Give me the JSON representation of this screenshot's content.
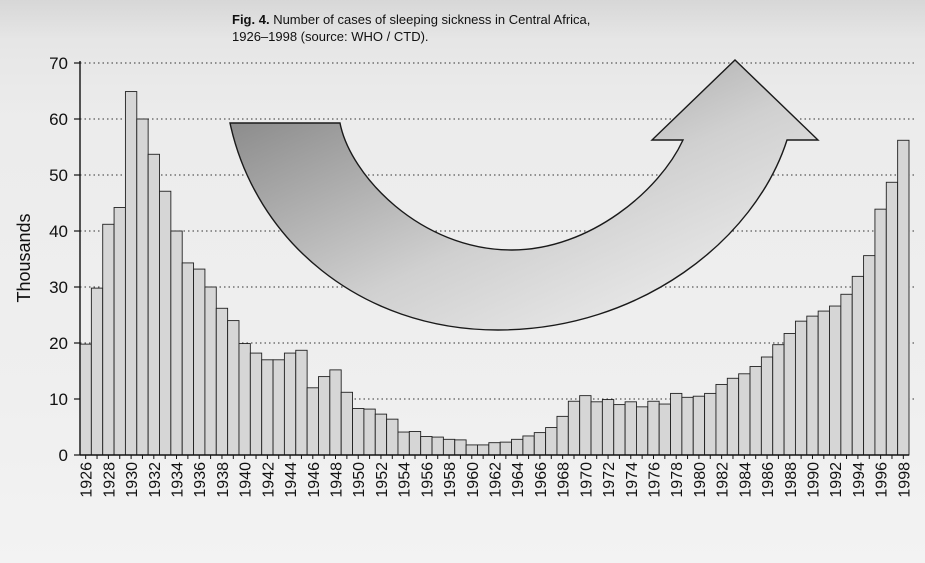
{
  "caption": {
    "label": "Fig. 4.",
    "text": "Number of cases of sleeping sickness in Central Africa, 1926–1998 (source: WHO / CTD)."
  },
  "colors": {
    "bar_fill": "#d6d6d6",
    "bar_stroke": "#222222",
    "arrow_dark": "#7a7a7a",
    "arrow_light": "#f6f6f6",
    "axis": "#111111"
  },
  "chart_data": {
    "type": "bar",
    "ylabel": "Thousands",
    "ylim": [
      0,
      70
    ],
    "yticks": [
      0,
      10,
      20,
      30,
      40,
      50,
      60,
      70
    ],
    "grid": "dotted horizontal",
    "x_tick_step": 2,
    "x": [
      1926,
      1927,
      1928,
      1929,
      1930,
      1931,
      1932,
      1933,
      1934,
      1935,
      1936,
      1937,
      1938,
      1939,
      1940,
      1941,
      1942,
      1943,
      1944,
      1945,
      1946,
      1947,
      1948,
      1949,
      1950,
      1951,
      1952,
      1953,
      1954,
      1955,
      1956,
      1957,
      1958,
      1959,
      1960,
      1961,
      1962,
      1963,
      1964,
      1965,
      1966,
      1967,
      1968,
      1969,
      1970,
      1971,
      1972,
      1973,
      1974,
      1975,
      1976,
      1977,
      1978,
      1979,
      1980,
      1981,
      1982,
      1983,
      1984,
      1985,
      1986,
      1987,
      1988,
      1989,
      1990,
      1991,
      1992,
      1993,
      1994,
      1995,
      1996,
      1997,
      1998
    ],
    "values": [
      19.8,
      29.8,
      41.2,
      44.2,
      64.9,
      60.0,
      53.7,
      47.1,
      40.0,
      34.3,
      33.2,
      30.0,
      26.2,
      24.0,
      19.9,
      18.2,
      17.0,
      17.0,
      18.2,
      18.7,
      12.0,
      14.0,
      15.2,
      11.2,
      8.3,
      8.2,
      7.3,
      6.4,
      4.1,
      4.2,
      3.3,
      3.2,
      2.8,
      2.7,
      1.8,
      1.8,
      2.2,
      2.3,
      2.8,
      3.4,
      4.0,
      4.9,
      6.9,
      9.6,
      10.6,
      9.5,
      9.9,
      9.0,
      9.5,
      8.6,
      9.6,
      9.1,
      11.0,
      10.3,
      10.5,
      11.0,
      12.6,
      13.7,
      14.5,
      15.8,
      17.5,
      19.7,
      21.7,
      23.9,
      24.8,
      25.7,
      26.6,
      28.7,
      31.9,
      35.6,
      43.9,
      48.7,
      56.2
    ]
  }
}
